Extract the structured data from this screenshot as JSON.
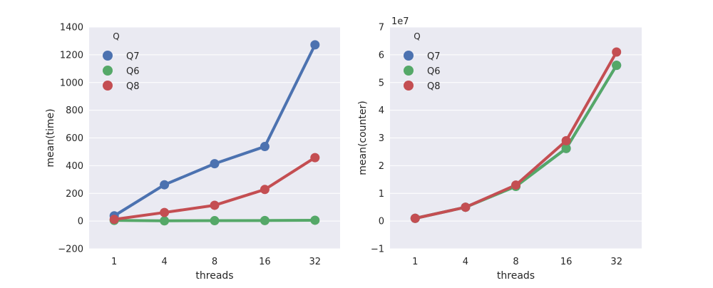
{
  "chart_data": [
    {
      "type": "line",
      "xlabel": "threads",
      "ylabel": "mean(time)",
      "categories": [
        "1",
        "4",
        "8",
        "16",
        "32"
      ],
      "ylim": [
        -200,
        1400
      ],
      "yticks": [
        -200,
        0,
        200,
        400,
        600,
        800,
        1000,
        1200,
        1400
      ],
      "yticklabels": [
        "−200",
        "0",
        "200",
        "400",
        "600",
        "800",
        "1000",
        "1200",
        "1400"
      ],
      "offset_text": "",
      "grid": true,
      "legend": {
        "title": "Q",
        "position": "top-left"
      },
      "series": [
        {
          "name": "Q7",
          "color": "#4c72b0",
          "values": [
            38,
            262,
            414,
            538,
            1272
          ]
        },
        {
          "name": "Q6",
          "color": "#55a868",
          "values": [
            5,
            2,
            3,
            4,
            6
          ]
        },
        {
          "name": "Q8",
          "color": "#c44e52",
          "values": [
            12,
            62,
            114,
            228,
            458
          ]
        }
      ]
    },
    {
      "type": "line",
      "xlabel": "threads",
      "ylabel": "mean(counter)",
      "categories": [
        "1",
        "4",
        "8",
        "16",
        "32"
      ],
      "ylim": [
        -1,
        7
      ],
      "yticks": [
        -1,
        0,
        1,
        2,
        3,
        4,
        5,
        6,
        7
      ],
      "yticklabels": [
        "−1",
        "0",
        "1",
        "2",
        "3",
        "4",
        "5",
        "6",
        "7"
      ],
      "offset_text": "1e7",
      "grid": true,
      "legend": {
        "title": "Q",
        "position": "top-left"
      },
      "series": [
        {
          "name": "Q7",
          "color": "#4c72b0",
          "values": [
            0.1,
            0.5,
            1.27,
            2.62,
            5.62
          ]
        },
        {
          "name": "Q6",
          "color": "#55a868",
          "values": [
            0.1,
            0.5,
            1.25,
            2.62,
            5.62
          ]
        },
        {
          "name": "Q8",
          "color": "#c44e52",
          "values": [
            0.1,
            0.5,
            1.3,
            2.9,
            6.1
          ]
        }
      ]
    }
  ]
}
